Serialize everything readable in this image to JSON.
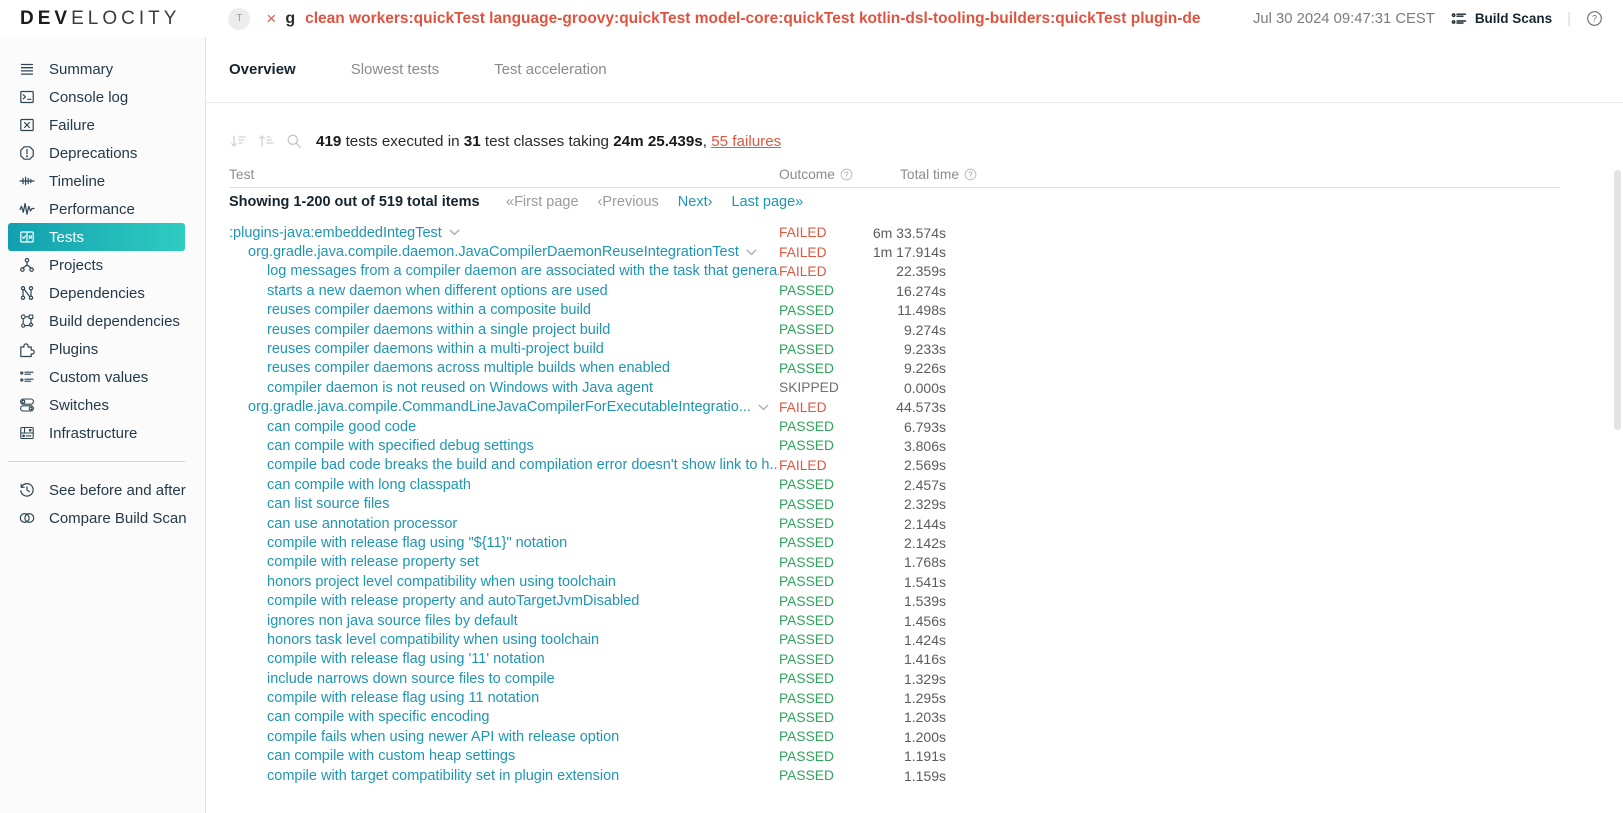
{
  "header": {
    "logo_dev": "DEV",
    "logo_rest": "ELOCITY",
    "avatar_label": "T",
    "close_icon": "×",
    "gradle_glyph": "g",
    "build_title": "clean workers:quickTest language-groovy:quickTest model-core:quickTest kotlin-dsl-tooling-builders:quickTest plugin-development...",
    "timestamp": "Jul 30 2024 09:47:31 CEST",
    "build_scans_label": "Build Scans",
    "divider": "|"
  },
  "sidebar": {
    "items": [
      {
        "label": "Summary",
        "icon": "summary-icon"
      },
      {
        "label": "Console log",
        "icon": "console-icon"
      },
      {
        "label": "Failure",
        "icon": "failure-icon"
      },
      {
        "label": "Deprecations",
        "icon": "deprecations-icon"
      },
      {
        "label": "Timeline",
        "icon": "timeline-icon"
      },
      {
        "label": "Performance",
        "icon": "performance-icon"
      },
      {
        "label": "Tests",
        "icon": "tests-icon",
        "active": true
      },
      {
        "label": "Projects",
        "icon": "projects-icon"
      },
      {
        "label": "Dependencies",
        "icon": "dependencies-icon"
      },
      {
        "label": "Build dependencies",
        "icon": "build-dependencies-icon"
      },
      {
        "label": "Plugins",
        "icon": "plugins-icon"
      },
      {
        "label": "Custom values",
        "icon": "custom-values-icon"
      },
      {
        "label": "Switches",
        "icon": "switches-icon"
      },
      {
        "label": "Infrastructure",
        "icon": "infrastructure-icon"
      }
    ],
    "footer_items": [
      {
        "label": "See before and after",
        "icon": "history-icon"
      },
      {
        "label": "Compare Build Scan",
        "icon": "compare-icon"
      }
    ]
  },
  "tabs": [
    {
      "label": "Overview",
      "active": true
    },
    {
      "label": "Slowest tests",
      "active": false
    },
    {
      "label": "Test acceleration",
      "active": false
    }
  ],
  "summary": {
    "tests_count": "419",
    "text1": " tests executed in ",
    "class_count": "31",
    "text2": " test classes taking ",
    "duration": "24m 25.439s",
    "text3": ", ",
    "failures_link": "55 failures"
  },
  "table": {
    "columns": {
      "test": "Test",
      "outcome": "Outcome",
      "total_time": "Total time"
    },
    "pagination": {
      "showing": "Showing 1-200 out of 519 total items",
      "first": "«First page",
      "prev": "‹Previous",
      "next": "Next›",
      "last": "Last page»"
    },
    "rows": [
      {
        "indent": 0,
        "label": ":plugins-java:embeddedIntegTest",
        "expandable": true,
        "outcome": "FAILED",
        "time": "6m 33.574s"
      },
      {
        "indent": 1,
        "label": "org.gradle.java.compile.daemon.JavaCompilerDaemonReuseIntegrationTest",
        "expandable": true,
        "outcome": "FAILED",
        "time": "1m 17.914s"
      },
      {
        "indent": 2,
        "label": "log messages from a compiler daemon are associated with the task that genera...",
        "expandable": false,
        "outcome": "FAILED",
        "time": "22.359s"
      },
      {
        "indent": 2,
        "label": "starts a new daemon when different options are used",
        "expandable": false,
        "outcome": "PASSED",
        "time": "16.274s"
      },
      {
        "indent": 2,
        "label": "reuses compiler daemons within a composite build",
        "expandable": false,
        "outcome": "PASSED",
        "time": "11.498s"
      },
      {
        "indent": 2,
        "label": "reuses compiler daemons within a single project build",
        "expandable": false,
        "outcome": "PASSED",
        "time": "9.274s"
      },
      {
        "indent": 2,
        "label": "reuses compiler daemons within a multi-project build",
        "expandable": false,
        "outcome": "PASSED",
        "time": "9.233s"
      },
      {
        "indent": 2,
        "label": "reuses compiler daemons across multiple builds when enabled",
        "expandable": false,
        "outcome": "PASSED",
        "time": "9.226s"
      },
      {
        "indent": 2,
        "label": "compiler daemon is not reused on Windows with Java agent",
        "expandable": false,
        "outcome": "SKIPPED",
        "time": "0.000s"
      },
      {
        "indent": 1,
        "label": "org.gradle.java.compile.CommandLineJavaCompilerForExecutableIntegratio...",
        "expandable": true,
        "outcome": "FAILED",
        "time": "44.573s"
      },
      {
        "indent": 2,
        "label": "can compile good code",
        "expandable": false,
        "outcome": "PASSED",
        "time": "6.793s"
      },
      {
        "indent": 2,
        "label": "can compile with specified debug settings",
        "expandable": false,
        "outcome": "PASSED",
        "time": "3.806s"
      },
      {
        "indent": 2,
        "label": "compile bad code breaks the build and compilation error doesn't show link to h...",
        "expandable": false,
        "outcome": "FAILED",
        "time": "2.569s"
      },
      {
        "indent": 2,
        "label": "can compile with long classpath",
        "expandable": false,
        "outcome": "PASSED",
        "time": "2.457s"
      },
      {
        "indent": 2,
        "label": "can list source files",
        "expandable": false,
        "outcome": "PASSED",
        "time": "2.329s"
      },
      {
        "indent": 2,
        "label": "can use annotation processor",
        "expandable": false,
        "outcome": "PASSED",
        "time": "2.144s"
      },
      {
        "indent": 2,
        "label": "compile with release flag using \"${11}\" notation",
        "expandable": false,
        "outcome": "PASSED",
        "time": "2.142s"
      },
      {
        "indent": 2,
        "label": "compile with release property set",
        "expandable": false,
        "outcome": "PASSED",
        "time": "1.768s"
      },
      {
        "indent": 2,
        "label": "honors project level compatibility when using toolchain",
        "expandable": false,
        "outcome": "PASSED",
        "time": "1.541s"
      },
      {
        "indent": 2,
        "label": "compile with release property and autoTargetJvmDisabled",
        "expandable": false,
        "outcome": "PASSED",
        "time": "1.539s"
      },
      {
        "indent": 2,
        "label": "ignores non java source files by default",
        "expandable": false,
        "outcome": "PASSED",
        "time": "1.456s"
      },
      {
        "indent": 2,
        "label": "honors task level compatibility when using toolchain",
        "expandable": false,
        "outcome": "PASSED",
        "time": "1.424s"
      },
      {
        "indent": 2,
        "label": "compile with release flag using '11' notation",
        "expandable": false,
        "outcome": "PASSED",
        "time": "1.416s"
      },
      {
        "indent": 2,
        "label": "include narrows down source files to compile",
        "expandable": false,
        "outcome": "PASSED",
        "time": "1.329s"
      },
      {
        "indent": 2,
        "label": "compile with release flag using 11 notation",
        "expandable": false,
        "outcome": "PASSED",
        "time": "1.295s"
      },
      {
        "indent": 2,
        "label": "can compile with specific encoding",
        "expandable": false,
        "outcome": "PASSED",
        "time": "1.203s"
      },
      {
        "indent": 2,
        "label": "compile fails when using newer API with release option",
        "expandable": false,
        "outcome": "PASSED",
        "time": "1.200s"
      },
      {
        "indent": 2,
        "label": "can compile with custom heap settings",
        "expandable": false,
        "outcome": "PASSED",
        "time": "1.191s"
      },
      {
        "indent": 2,
        "label": "compile with target compatibility set in plugin extension",
        "expandable": false,
        "outcome": "PASSED",
        "time": "1.159s"
      }
    ]
  },
  "colors": {
    "accent_teal": "#1e96b2",
    "failed_red": "#e05740",
    "passed_green": "#2fa35c",
    "skipped_gray": "#707070",
    "selected_gradient_start": "#12a0b0",
    "selected_gradient_end": "#2fccc0"
  }
}
